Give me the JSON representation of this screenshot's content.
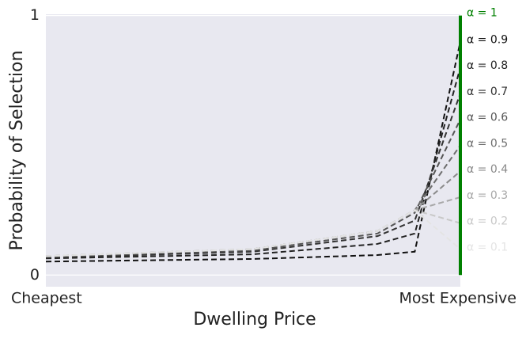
{
  "chart_data": {
    "type": "line",
    "xlabel": "Dwelling Price",
    "ylabel": "Probability of Selection",
    "x": [
      0,
      0.5,
      0.8,
      0.89,
      1
    ],
    "xlim": [
      0,
      1
    ],
    "xticks": [
      {
        "value": 0,
        "label": "Cheapest"
      },
      {
        "value": 1,
        "label": "Most Expensive"
      }
    ],
    "ylim": [
      -0.045,
      1.005
    ],
    "yticks": [
      0,
      1
    ],
    "grid": true,
    "series": [
      {
        "name": "α = 0.9",
        "color": "#111111",
        "values": [
          0.052,
          0.062,
          0.077,
          0.09,
          0.9
        ]
      },
      {
        "name": "α = 0.8",
        "color": "#222222",
        "values": [
          0.064,
          0.08,
          0.12,
          0.16,
          0.8
        ]
      },
      {
        "name": "α = 0.7",
        "color": "#333333",
        "values": [
          0.067,
          0.09,
          0.15,
          0.21,
          0.7
        ]
      },
      {
        "name": "α = 0.6",
        "color": "#555555",
        "values": [
          0.07,
          0.095,
          0.16,
          0.24,
          0.6
        ]
      },
      {
        "name": "α = 0.5",
        "color": "#6e6e6e",
        "values": [
          0.072,
          0.1,
          0.17,
          0.25,
          0.5
        ]
      },
      {
        "name": "α = 0.4",
        "color": "#8a8a8a",
        "values": [
          0.073,
          0.1,
          0.17,
          0.25,
          0.4
        ]
      },
      {
        "name": "α = 0.3",
        "color": "#a8a8a8",
        "values": [
          0.073,
          0.1,
          0.17,
          0.25,
          0.3
        ]
      },
      {
        "name": "α = 0.2",
        "color": "#c8c8c8",
        "values": [
          0.073,
          0.1,
          0.17,
          0.25,
          0.2
        ]
      },
      {
        "name": "α = 0.1",
        "color": "#e4e4e4",
        "values": [
          0.073,
          0.1,
          0.17,
          0.25,
          0.1
        ]
      },
      {
        "name": "α = 1",
        "color": "#008000",
        "x": [
          1,
          1
        ],
        "values": [
          0,
          1
        ]
      }
    ]
  }
}
